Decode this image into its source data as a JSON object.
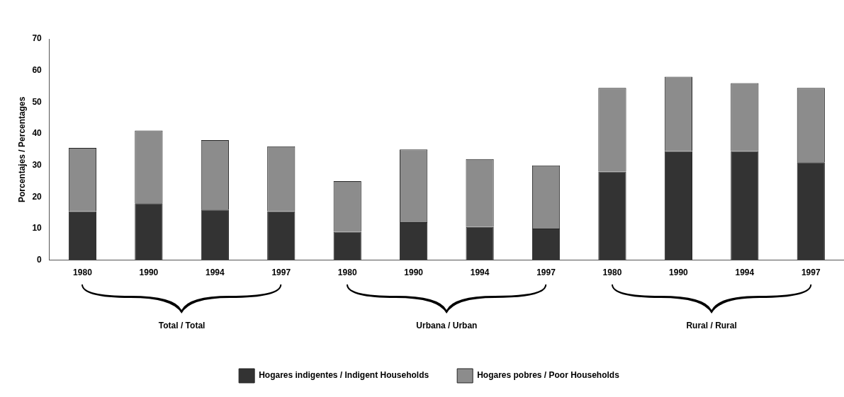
{
  "chart_data": {
    "type": "bar",
    "stacked": true,
    "ylabel": "Porcentajes / Percentages",
    "categories": [
      "1980",
      "1990",
      "1994",
      "1997",
      "1980",
      "1990",
      "1994",
      "1997",
      "1980",
      "1990",
      "1994",
      "1997"
    ],
    "series": [
      {
        "name": "Hogares indigentes / Indigent Households",
        "color": "#333333",
        "values": [
          15.5,
          18,
          16,
          15.5,
          9,
          12,
          10.5,
          10,
          28,
          34.5,
          34.5,
          31
        ]
      },
      {
        "name": "Hogares pobres / Poor Households",
        "color": "#8c8c8c",
        "values": [
          20,
          23,
          22,
          20.5,
          16,
          23,
          21.5,
          20,
          26.5,
          23.5,
          21.5,
          23.5
        ]
      }
    ],
    "ylim": [
      0,
      70
    ],
    "yticks": [
      0,
      10,
      20,
      30,
      40,
      50,
      60,
      70
    ],
    "grid": false,
    "legend": "bottom",
    "annotations": [
      "Total / Total",
      "Urbana / Urban",
      "Rural / Rural"
    ]
  }
}
